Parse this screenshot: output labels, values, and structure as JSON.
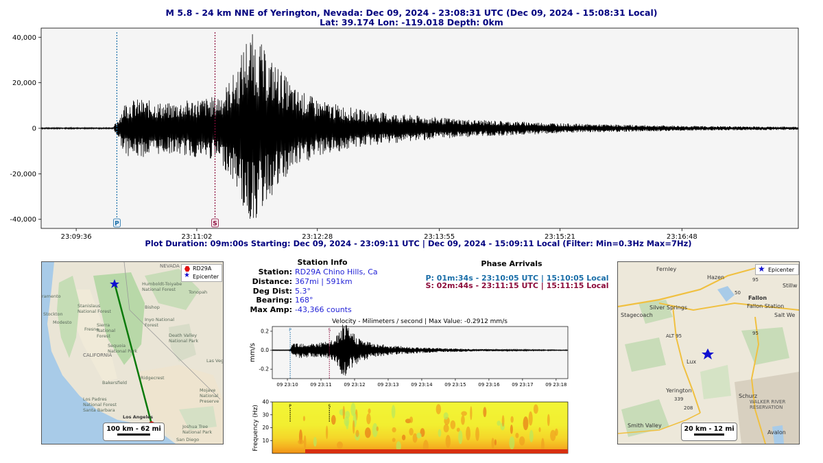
{
  "header": {
    "title_line1": "M 5.8 - 24 km NNE of Yerington, Nevada:  Dec 09, 2024 - 23:08:31 UTC (Dec 09, 2024 - 15:08:31 Local)",
    "title_line2": "Lat: 39.174 Lon: -119.018 Depth: 0km"
  },
  "main_plot": {
    "caption": "Plot Duration: 09m:00s  Starting: Dec 09, 2024 - 23:09:11 UTC | Dec 09, 2024 - 15:09:11 Local   (Filter:  Min=0.3Hz  Max=7Hz)",
    "p_label": "P",
    "s_label": "S"
  },
  "chart_data": [
    {
      "type": "line",
      "name": "main-seismogram",
      "x_ticks": [
        "23:09:36",
        "23:11:02",
        "23:12:28",
        "23:13:55",
        "23:15:21",
        "23:16:48"
      ],
      "y_ticks": [
        "40,000",
        "20,000",
        "0",
        "-20,000",
        "-40,000"
      ],
      "ylim": [
        -44000,
        44000
      ],
      "x_range_seconds": [
        0,
        540
      ],
      "p_arrival_s": 54,
      "s_arrival_s": 124,
      "envelope_s": [
        0,
        50,
        54,
        60,
        70,
        90,
        110,
        124,
        130,
        140,
        146,
        150,
        156,
        160,
        170,
        180,
        200,
        230,
        260,
        300,
        340,
        380,
        420,
        470,
        540
      ],
      "envelope_amp": [
        0,
        200,
        3000,
        12000,
        13000,
        11000,
        13000,
        14000,
        17000,
        27000,
        40000,
        42000,
        39000,
        33000,
        27000,
        18000,
        12000,
        8000,
        6000,
        4000,
        3000,
        2000,
        1500,
        1000,
        700
      ],
      "grid": false,
      "background": "#f5f5f5"
    },
    {
      "type": "line",
      "name": "velocity-trace",
      "title": "Velocity - Milimeters / second | Max Value: -0.2912 mm/s",
      "ylabel": "mm/s",
      "x_ticks": [
        "09 23:10",
        "09 23:11",
        "09 23:12",
        "09 23:13",
        "09 23:14",
        "09 23:15",
        "09 23:16",
        "09 23:17",
        "09 23:18"
      ],
      "y_ticks": [
        "0.2",
        "0.0",
        "-0.2"
      ],
      "ylim": [
        -0.3,
        0.25
      ],
      "p_label": "P",
      "s_label": "S",
      "max_value": -0.2912
    },
    {
      "type": "heatmap",
      "name": "spectrogram",
      "ylabel": "Frequency (Hz)",
      "y_ticks": [
        "40",
        "30",
        "20",
        "10"
      ],
      "ylim": [
        0,
        40
      ],
      "p_label": "P",
      "s_label": "S"
    }
  ],
  "station": {
    "heading": "Station Info",
    "rows": [
      {
        "label": "Station:",
        "value": "RD29A Chino Hills, Ca"
      },
      {
        "label": "Distance:",
        "value": "367mi | 591km"
      },
      {
        "label": "Deg Dist:",
        "value": "5.3°"
      },
      {
        "label": "Bearing:",
        "value": "168°"
      },
      {
        "label": "Max Amp:",
        "value": "-43,366 counts"
      }
    ]
  },
  "phases": {
    "heading": "Phase Arrivals",
    "p_line": "P: 01m:34s - 23:10:05 UTC | 15:10:05 Local",
    "s_line": "S: 02m:44s - 23:11:15 UTC | 15:11:15 Local",
    "p_color": "#1a6ea8",
    "s_color": "#8b0a3a"
  },
  "map_left": {
    "scale_label": "100 km - 62 mi",
    "legend": [
      {
        "label": "RD29A",
        "icon": "red-hexagon"
      },
      {
        "label": "Epicenter",
        "icon": "blue-star"
      }
    ],
    "place_labels": [
      "NEVADA",
      "CALIFORNIA",
      "Fresno",
      "Bakersfield",
      "Los Angeles",
      "Las Veg",
      "Ridgecrest",
      "Death Valley National Park",
      "Sequoia National Park",
      "Stockton",
      "Modesto",
      "Humboldt-Toiyabe National Forest",
      "Inyo National Forest",
      "Mojave National Preserve",
      "Joshua Tree National Park",
      "Los Padres National Forest",
      "Sierra National Forest",
      "Stanislaus National Forest",
      "Tonopah",
      "Bishop",
      "Santa Barbara",
      "San Diego",
      "ramento"
    ]
  },
  "map_right": {
    "scale_label": "20 km - 12 mi",
    "legend_label": "Epicenter",
    "place_labels": [
      "Fernley",
      "Hazen",
      "Stillw",
      "Silver Springs",
      "Fallon",
      "Fallon Station",
      "Stagecoach",
      "Salt We",
      "Lux",
      "Yerington",
      "Schurz",
      "WALKER RIVER RESERVATION",
      "Smith Valley",
      "Avalon"
    ],
    "road_labels": [
      "95",
      "50",
      "ALT 95",
      "95",
      "208",
      "339"
    ]
  },
  "colors": {
    "title_blue": "#00007f",
    "value_blue": "#1f1fd6",
    "p_line": "#1a6ea8",
    "s_line": "#8b0a3a",
    "epicenter": "#1010d0",
    "station": "#e01010",
    "path": "#0a7a0a"
  }
}
